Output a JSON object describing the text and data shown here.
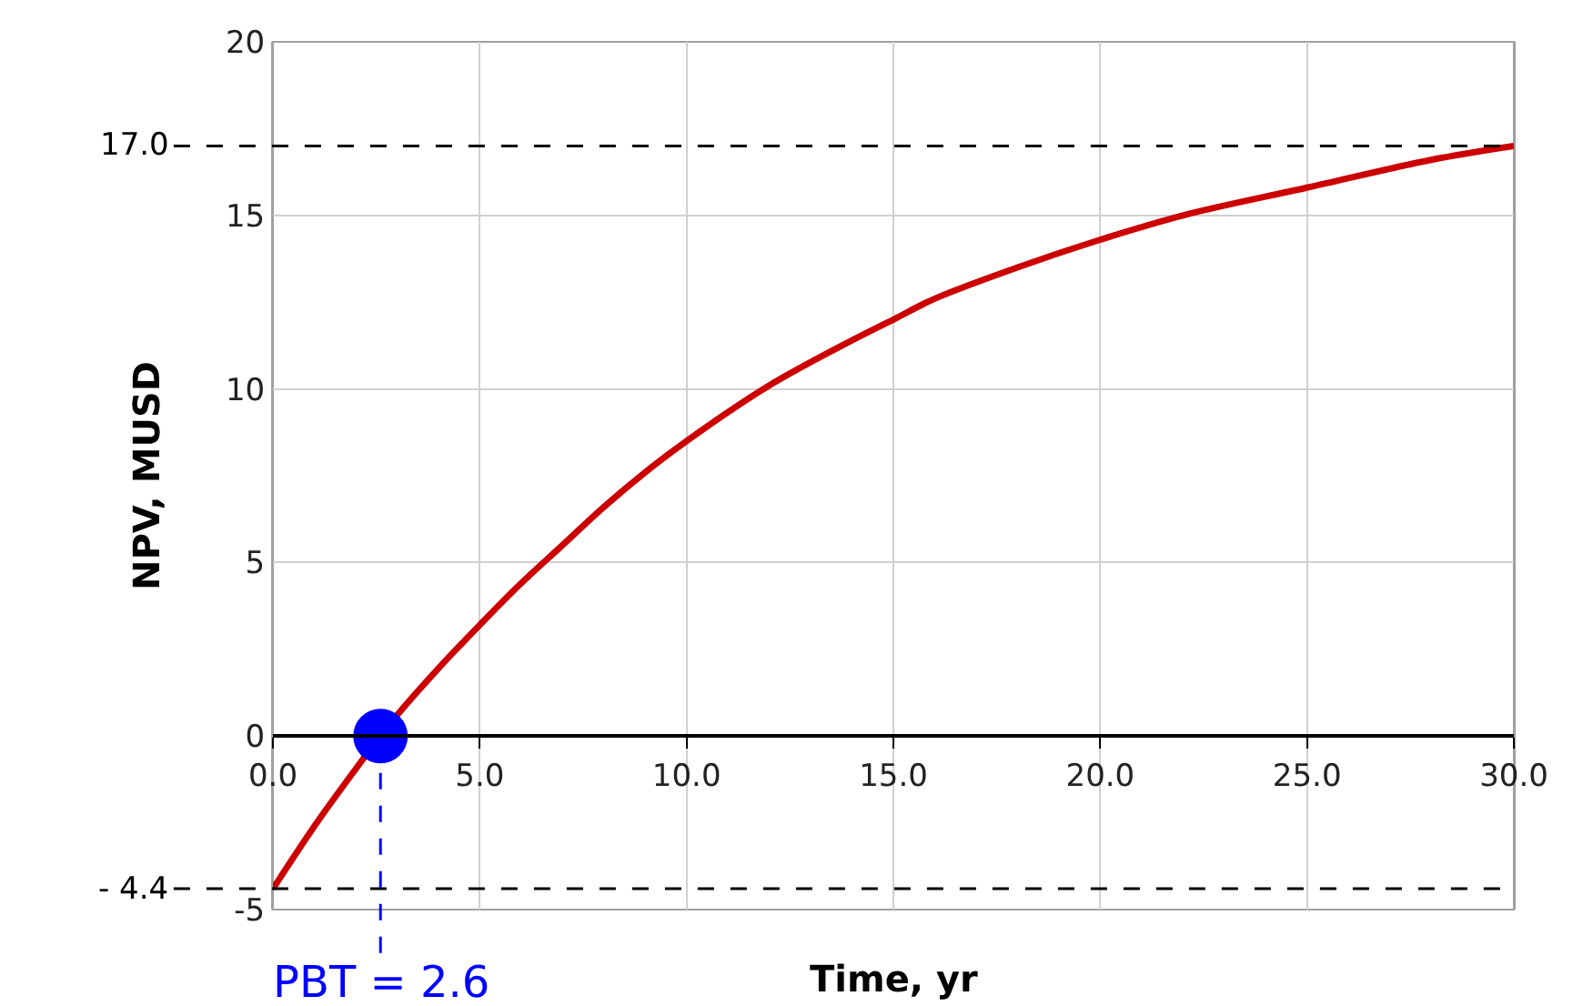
{
  "chart_data": {
    "type": "line",
    "xlabel": "Time, yr",
    "ylabel": "NPV, MUSD",
    "xlim": [
      0,
      30
    ],
    "xticks": [
      {
        "value": 0,
        "label": "0.0"
      },
      {
        "value": 5,
        "label": "5.0"
      },
      {
        "value": 10,
        "label": "10.0"
      },
      {
        "value": 15,
        "label": "15.0"
      },
      {
        "value": 20,
        "label": "20.0"
      },
      {
        "value": 25,
        "label": "25.0"
      },
      {
        "value": 30,
        "label": "30.0"
      }
    ],
    "ylim": [
      -5,
      20
    ],
    "yticks": [
      -5,
      0,
      5,
      10,
      15,
      20
    ],
    "grid": true,
    "series": [
      {
        "color": "#cc0000",
        "marker": "none",
        "line_style": "solid",
        "x": [
          0,
          1,
          2,
          2.6,
          3,
          4,
          5,
          6,
          7,
          8,
          9,
          10,
          12,
          14,
          15,
          16,
          18,
          20,
          22,
          25,
          28,
          30
        ],
        "values": [
          -4.4,
          -2.6,
          -0.95,
          0,
          0.6,
          1.95,
          3.2,
          4.4,
          5.5,
          6.6,
          7.6,
          8.5,
          10.1,
          11.4,
          12.0,
          12.6,
          13.5,
          14.3,
          15.0,
          15.8,
          16.6,
          17.0
        ]
      },
      {
        "type": "scatter",
        "color": "#0000ff",
        "marker": "circle",
        "x": [
          2.6
        ],
        "values": [
          0
        ]
      }
    ],
    "ref_lines": [
      {
        "axis": "y",
        "value": 17.0,
        "label": "17.0",
        "color": "#000000",
        "line_style": "dashed"
      },
      {
        "axis": "y",
        "value": -4.4,
        "label": "- 4.4",
        "color": "#000000",
        "line_style": "dashed"
      },
      {
        "axis": "x",
        "value": 2.6,
        "label": "PBT = 2.6",
        "color": "#0000ff",
        "line_style": "dashed"
      }
    ]
  }
}
